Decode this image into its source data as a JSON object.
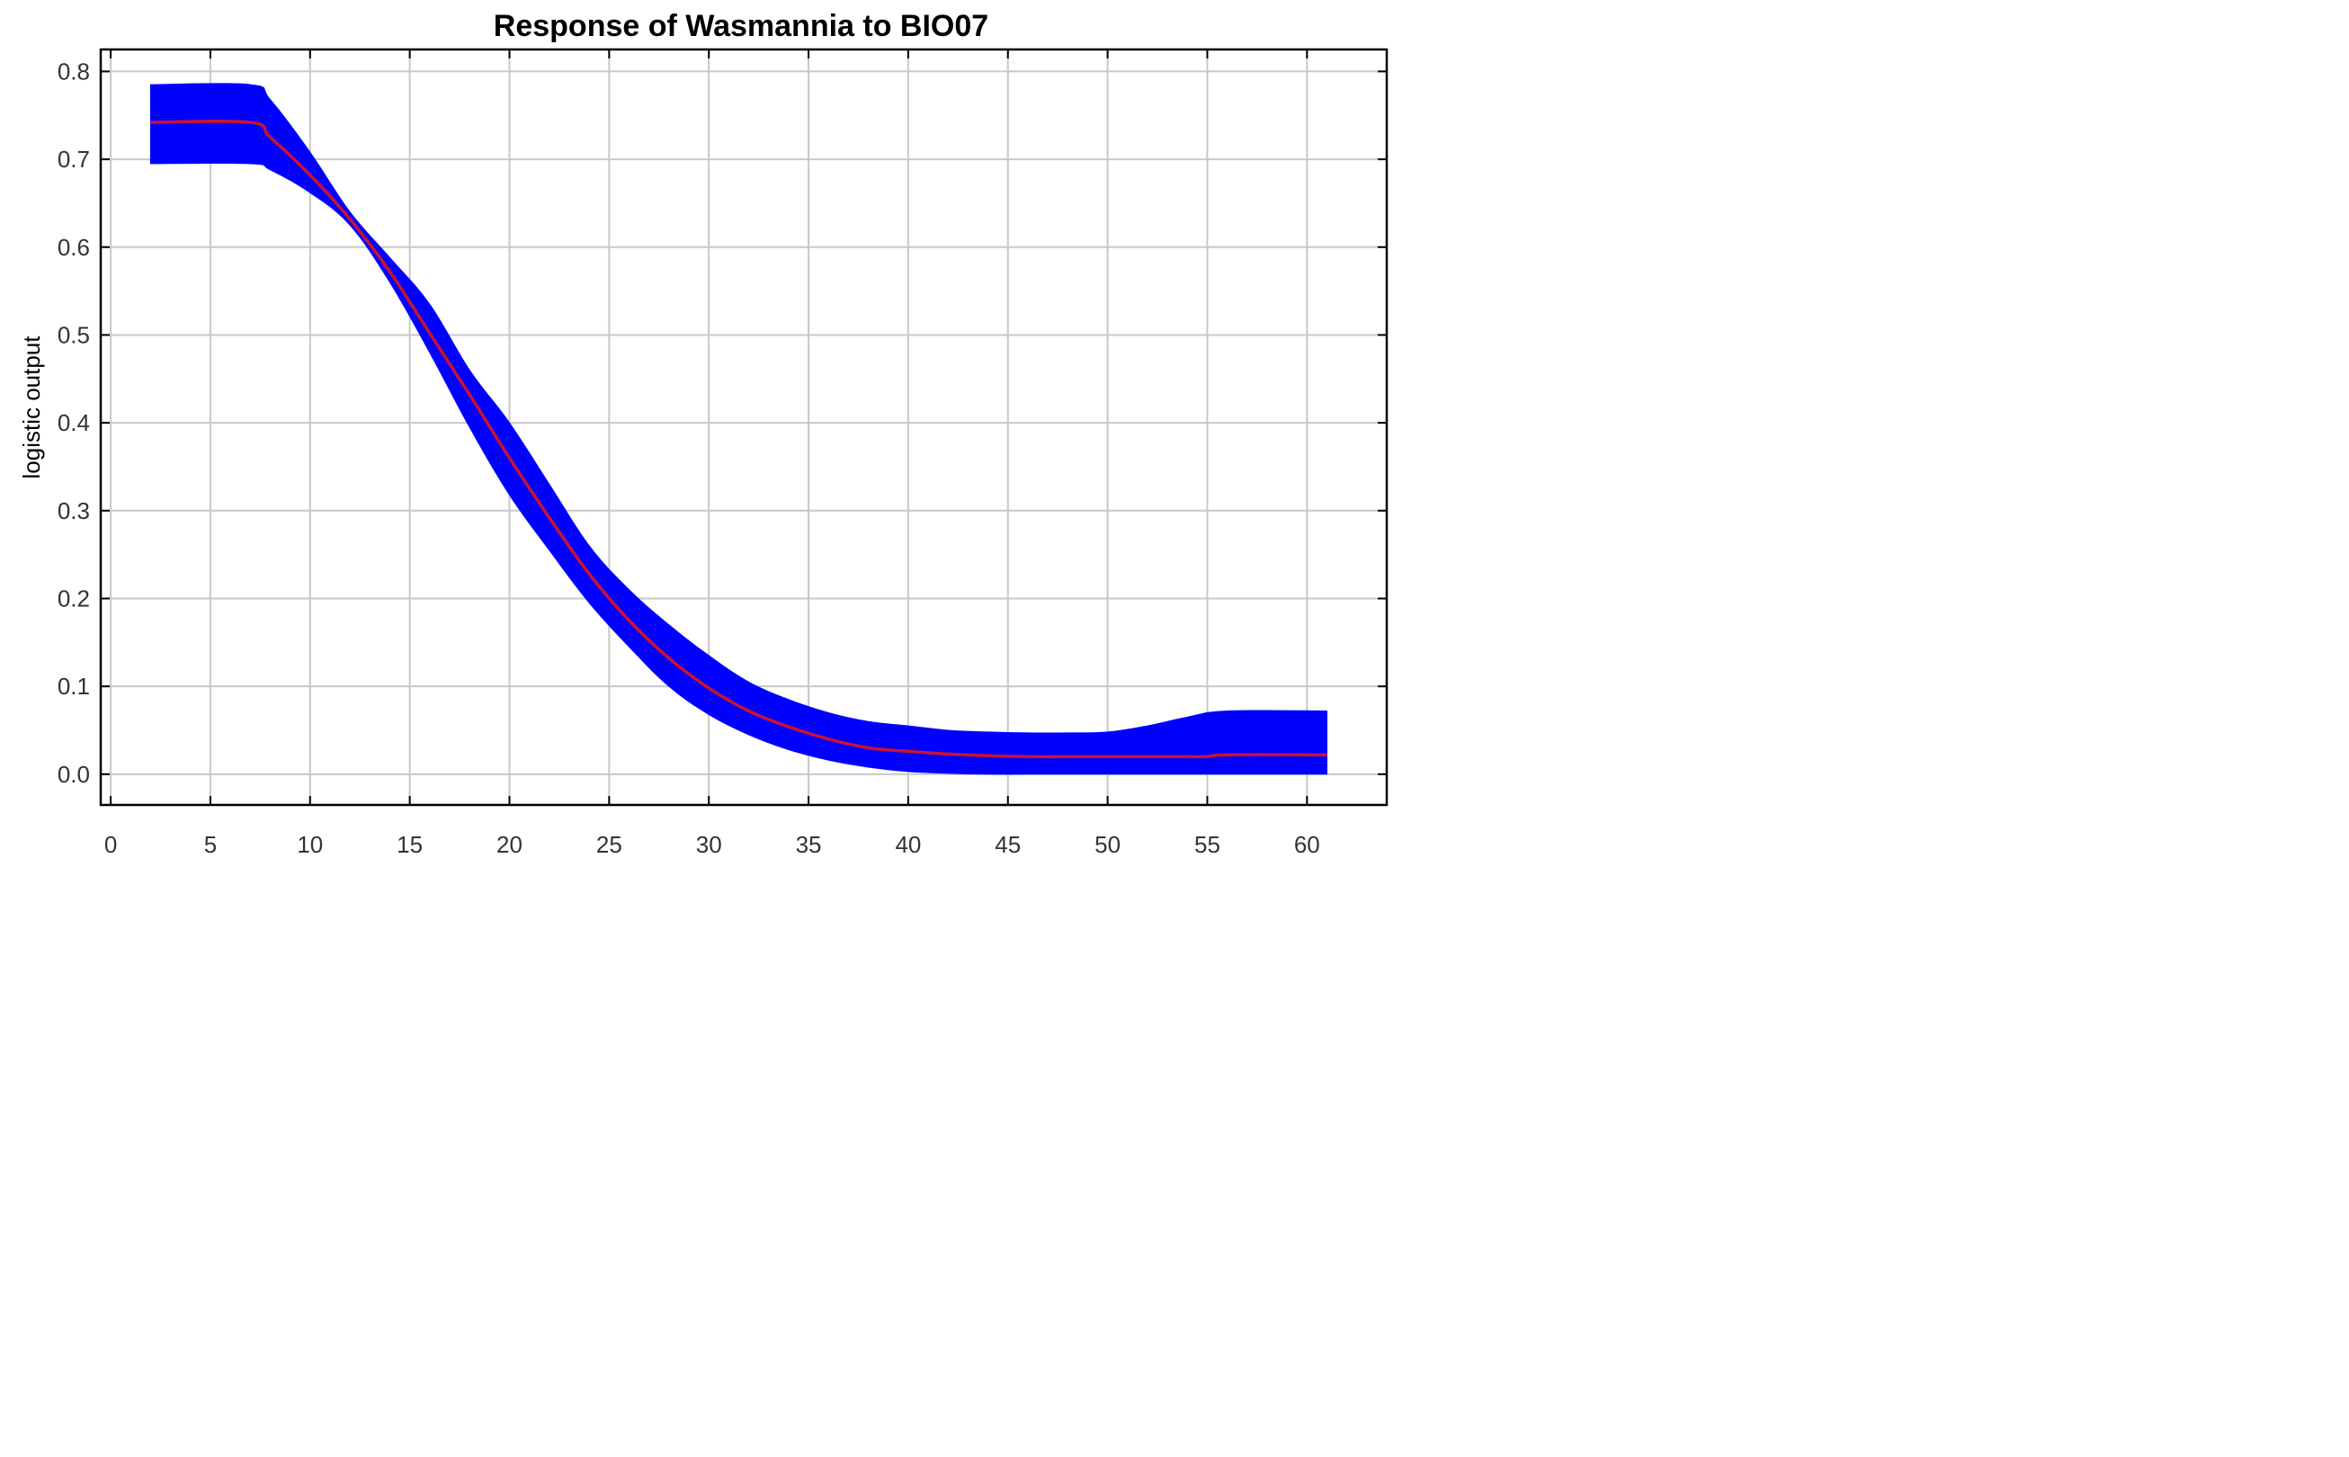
{
  "chart_data": {
    "type": "line",
    "title": "Response of Wasmannia to BIO07",
    "xlabel": "",
    "ylabel": "logistic output",
    "xlim": [
      -0.5,
      64
    ],
    "ylim": [
      -0.035,
      0.825
    ],
    "xticks": [
      0,
      5,
      10,
      15,
      20,
      25,
      30,
      35,
      40,
      45,
      50,
      55,
      60
    ],
    "yticks": [
      0.0,
      0.1,
      0.2,
      0.3,
      0.4,
      0.5,
      0.6,
      0.7,
      0.8
    ],
    "ytick_labels": [
      "0.0",
      "0.1",
      "0.2",
      "0.3",
      "0.4",
      "0.5",
      "0.6",
      "0.7",
      "0.8"
    ],
    "grid": true,
    "legend": "none",
    "colors": {
      "band": "#0000ff",
      "mean": "#cc1133",
      "grid": "#c8c8c8",
      "frame": "#000000"
    },
    "series": [
      {
        "kind": "band",
        "x": [
          2,
          7,
          8,
          10,
          12,
          14,
          16,
          18,
          20,
          22,
          24,
          26,
          28,
          30,
          32,
          34,
          36,
          38,
          40,
          42,
          44,
          46,
          48,
          50,
          52,
          54,
          56,
          61
        ],
        "lower": [
          0.695,
          0.695,
          0.688,
          0.662,
          0.625,
          0.56,
          0.48,
          0.395,
          0.318,
          0.255,
          0.195,
          0.145,
          0.1,
          0.068,
          0.045,
          0.028,
          0.016,
          0.008,
          0.003,
          0.001,
          0.0,
          0.0,
          0.0,
          0.0,
          0.0,
          0.0,
          0.0,
          0.0
        ],
        "upper": [
          0.785,
          0.785,
          0.768,
          0.708,
          0.64,
          0.588,
          0.535,
          0.46,
          0.4,
          0.33,
          0.26,
          0.21,
          0.17,
          0.135,
          0.105,
          0.085,
          0.07,
          0.06,
          0.055,
          0.05,
          0.048,
          0.047,
          0.047,
          0.048,
          0.055,
          0.065,
          0.072,
          0.072
        ]
      },
      {
        "kind": "line",
        "x": [
          2,
          7,
          8,
          10,
          12,
          14,
          16,
          18,
          20,
          22,
          24,
          26,
          28,
          30,
          32,
          34,
          36,
          38,
          40,
          42,
          44,
          46,
          48,
          50,
          52,
          54,
          55,
          56,
          61
        ],
        "y": [
          0.742,
          0.742,
          0.725,
          0.682,
          0.632,
          0.572,
          0.502,
          0.432,
          0.36,
          0.292,
          0.228,
          0.175,
          0.132,
          0.098,
          0.072,
          0.054,
          0.04,
          0.03,
          0.026,
          0.023,
          0.021,
          0.02,
          0.02,
          0.02,
          0.02,
          0.02,
          0.02,
          0.022,
          0.022
        ]
      }
    ]
  }
}
